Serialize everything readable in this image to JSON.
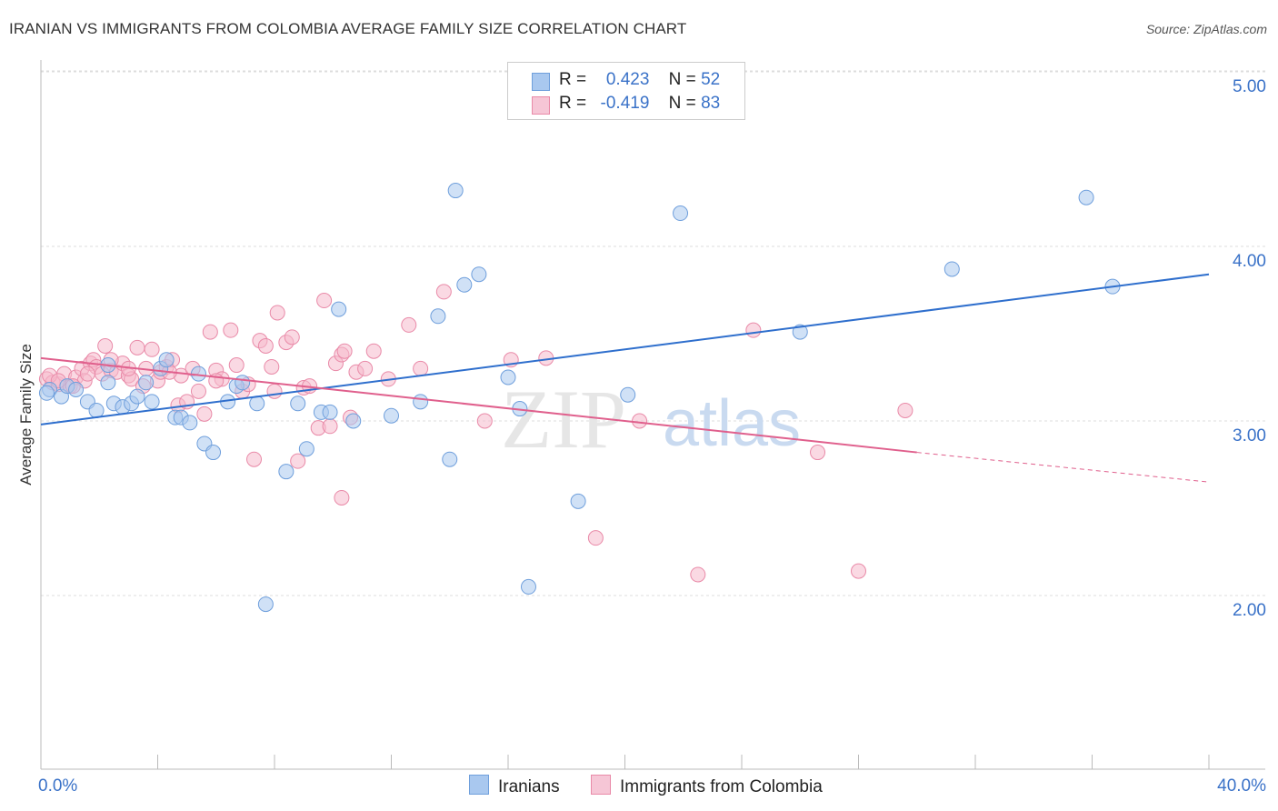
{
  "title": "IRANIAN VS IMMIGRANTS FROM COLOMBIA AVERAGE FAMILY SIZE CORRELATION CHART",
  "source": "Source: ZipAtlas.com",
  "watermark": {
    "zip": "ZIP",
    "atlas": "atlas"
  },
  "colors": {
    "blue_fill": "#a9c8ef",
    "blue_stroke": "#6f9fdc",
    "blue_line": "#2f6fcd",
    "pink_fill": "#f6b9cc",
    "pink_stroke": "#e98aa8",
    "pink_line": "#e0608d",
    "axis_label": "#3a72c8",
    "grid": "#dddddd"
  },
  "legend": {
    "r_label": "R =",
    "n_label": "N =",
    "blue": {
      "r": "0.423",
      "n": "52"
    },
    "pink": {
      "r": "-0.419",
      "n": "83"
    }
  },
  "chart_data": {
    "type": "scatter",
    "xlabel": "",
    "ylabel": "Average Family Size",
    "xlim": [
      0,
      40
    ],
    "ylim": [
      1.0,
      5.1
    ],
    "x_tick_labels": [
      "0.0%",
      "40.0%"
    ],
    "y_tick_labels": [
      "2.00",
      "3.00",
      "4.00",
      "5.00"
    ],
    "y_ticks": [
      2,
      3,
      4,
      5
    ],
    "grid": "horizontal dashed",
    "legend_position": "top-center",
    "series": [
      {
        "name": "Iranians",
        "color": "blue",
        "trend": {
          "x": [
            0,
            40
          ],
          "y": [
            2.98,
            3.84
          ]
        },
        "points": [
          [
            0.3,
            3.18
          ],
          [
            0.7,
            3.14
          ],
          [
            0.9,
            3.2
          ],
          [
            1.2,
            3.18
          ],
          [
            1.6,
            3.11
          ],
          [
            1.9,
            3.06
          ],
          [
            2.3,
            3.32
          ],
          [
            2.3,
            3.22
          ],
          [
            2.5,
            3.1
          ],
          [
            2.8,
            3.08
          ],
          [
            3.1,
            3.1
          ],
          [
            3.3,
            3.14
          ],
          [
            3.6,
            3.22
          ],
          [
            3.8,
            3.11
          ],
          [
            4.1,
            3.3
          ],
          [
            4.3,
            3.35
          ],
          [
            4.6,
            3.02
          ],
          [
            4.8,
            3.02
          ],
          [
            5.1,
            2.99
          ],
          [
            5.4,
            3.27
          ],
          [
            5.6,
            2.87
          ],
          [
            5.9,
            2.82
          ],
          [
            6.4,
            3.11
          ],
          [
            6.7,
            3.2
          ],
          [
            6.9,
            3.22
          ],
          [
            7.4,
            3.1
          ],
          [
            7.7,
            1.95
          ],
          [
            8.4,
            2.71
          ],
          [
            8.8,
            3.1
          ],
          [
            9.1,
            2.84
          ],
          [
            9.6,
            3.05
          ],
          [
            9.9,
            3.05
          ],
          [
            10.2,
            3.64
          ],
          [
            10.7,
            3.0
          ],
          [
            12.0,
            3.03
          ],
          [
            13.0,
            3.11
          ],
          [
            13.6,
            3.6
          ],
          [
            14.0,
            2.78
          ],
          [
            14.2,
            4.32
          ],
          [
            14.5,
            3.78
          ],
          [
            15.0,
            3.84
          ],
          [
            16.0,
            3.25
          ],
          [
            16.4,
            3.07
          ],
          [
            16.7,
            2.05
          ],
          [
            18.4,
            2.54
          ],
          [
            20.1,
            3.15
          ],
          [
            21.9,
            4.19
          ],
          [
            26.0,
            3.51
          ],
          [
            31.2,
            3.87
          ],
          [
            35.8,
            4.28
          ],
          [
            36.7,
            3.77
          ],
          [
            0.2,
            3.16
          ]
        ]
      },
      {
        "name": "Immigrants from Colombia",
        "color": "pink",
        "trend": {
          "x": [
            0,
            30
          ],
          "y": [
            3.36,
            2.82
          ]
        },
        "trend_dashed": {
          "x": [
            30,
            40
          ],
          "y": [
            2.82,
            2.65
          ]
        },
        "points": [
          [
            0.2,
            3.24
          ],
          [
            0.4,
            3.22
          ],
          [
            0.6,
            3.21
          ],
          [
            0.8,
            3.27
          ],
          [
            1.0,
            3.2
          ],
          [
            1.2,
            3.25
          ],
          [
            1.4,
            3.3
          ],
          [
            1.5,
            3.23
          ],
          [
            1.7,
            3.33
          ],
          [
            1.8,
            3.35
          ],
          [
            1.9,
            3.31
          ],
          [
            2.1,
            3.27
          ],
          [
            2.2,
            3.43
          ],
          [
            2.4,
            3.29
          ],
          [
            2.6,
            3.28
          ],
          [
            2.8,
            3.33
          ],
          [
            3.0,
            3.26
          ],
          [
            3.1,
            3.24
          ],
          [
            3.3,
            3.42
          ],
          [
            3.5,
            3.2
          ],
          [
            3.6,
            3.3
          ],
          [
            3.8,
            3.41
          ],
          [
            4.0,
            3.23
          ],
          [
            4.1,
            3.28
          ],
          [
            4.3,
            3.31
          ],
          [
            4.5,
            3.35
          ],
          [
            4.7,
            3.09
          ],
          [
            4.8,
            3.26
          ],
          [
            5.0,
            3.11
          ],
          [
            5.2,
            3.3
          ],
          [
            5.4,
            3.17
          ],
          [
            5.6,
            3.04
          ],
          [
            5.8,
            3.51
          ],
          [
            6.0,
            3.29
          ],
          [
            6.2,
            3.24
          ],
          [
            6.5,
            3.52
          ],
          [
            6.7,
            3.32
          ],
          [
            6.9,
            3.17
          ],
          [
            7.1,
            3.21
          ],
          [
            7.3,
            2.78
          ],
          [
            7.5,
            3.46
          ],
          [
            7.7,
            3.43
          ],
          [
            7.9,
            3.31
          ],
          [
            8.0,
            3.17
          ],
          [
            8.1,
            3.62
          ],
          [
            8.4,
            3.45
          ],
          [
            8.6,
            3.48
          ],
          [
            8.8,
            2.77
          ],
          [
            9.0,
            3.19
          ],
          [
            9.2,
            3.2
          ],
          [
            9.5,
            2.96
          ],
          [
            9.7,
            3.69
          ],
          [
            9.9,
            2.97
          ],
          [
            10.1,
            3.33
          ],
          [
            10.3,
            3.38
          ],
          [
            10.4,
            3.4
          ],
          [
            10.6,
            3.02
          ],
          [
            10.8,
            3.28
          ],
          [
            11.1,
            3.3
          ],
          [
            11.4,
            3.4
          ],
          [
            11.9,
            3.24
          ],
          [
            12.6,
            3.55
          ],
          [
            13.0,
            3.3
          ],
          [
            13.8,
            3.74
          ],
          [
            15.2,
            3.0
          ],
          [
            16.1,
            3.35
          ],
          [
            17.3,
            3.36
          ],
          [
            19.0,
            2.33
          ],
          [
            20.5,
            3.0
          ],
          [
            22.5,
            2.12
          ],
          [
            24.4,
            3.52
          ],
          [
            26.6,
            2.82
          ],
          [
            28.0,
            2.14
          ],
          [
            29.6,
            3.06
          ],
          [
            10.3,
            2.56
          ],
          [
            0.3,
            3.26
          ],
          [
            0.6,
            3.23
          ],
          [
            1.1,
            3.2
          ],
          [
            1.6,
            3.27
          ],
          [
            2.4,
            3.35
          ],
          [
            3.0,
            3.3
          ],
          [
            4.4,
            3.28
          ],
          [
            6.0,
            3.23
          ]
        ]
      }
    ]
  }
}
